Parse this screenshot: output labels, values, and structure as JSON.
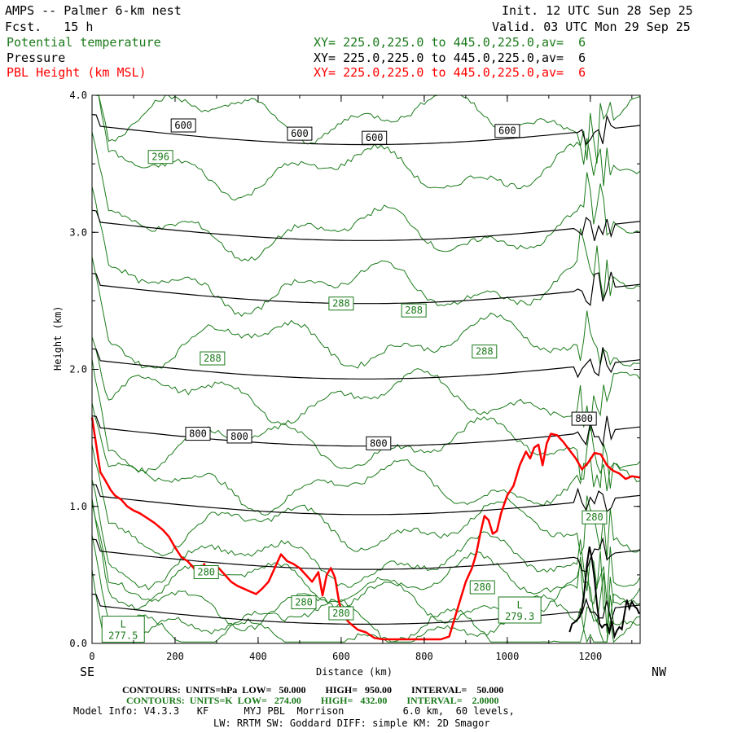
{
  "header": {
    "title": "AMPS -- Palmer 6-km nest",
    "init": "Init. 12 UTC Sun 28 Sep 25",
    "fcst": "Fcst.   15 h",
    "valid": "Valid. 03 UTC Mon 29 Sep 25",
    "fields": [
      {
        "name": "Potential temperature",
        "xy": "XY= 225.0,225.0 to 445.0,225.0,av=  6",
        "color": "#1a7a1a"
      },
      {
        "name": "Pressure",
        "xy": "XY= 225.0,225.0 to 445.0,225.0,av=  6",
        "color": "#000000"
      },
      {
        "name": "PBL Height (km MSL)",
        "xy": "XY= 225.0,225.0 to 445.0,225.0,av=  6",
        "color": "#ff0000"
      }
    ]
  },
  "footer": {
    "pressure_contours": "CONTOURS:  UNITS=hPa  LOW=   50.000        HIGH=   950.00        INTERVAL=    50.000",
    "theta_contours": "CONTOURS:  UNITS=K  LOW=   274.00        HIGH=   432.00        INTERVAL=    2.0000",
    "model_info": "Model Info: V4.3.3   KF      MYJ PBL  Morrison          6.0 km,  60 levels,",
    "model_info2": "LW: RRTM SW: Goddard DIFF: simple KM: 2D Smagor"
  },
  "chart_data": {
    "type": "line",
    "xlabel": "Distance (km)",
    "ylabel": "Height (km)",
    "xlim": [
      0,
      1320
    ],
    "ylim": [
      0,
      4
    ],
    "x_ticks": [
      "0",
      "200",
      "400",
      "600",
      "800",
      "1000",
      "1200"
    ],
    "y_ticks": [
      "0.0",
      "1.0",
      "2.0",
      "3.0",
      "4.0"
    ],
    "left_end": "SE",
    "right_end": "NW",
    "pressure_labels": [
      {
        "text": "600",
        "x": 220,
        "y": 3.78
      },
      {
        "text": "600",
        "x": 500,
        "y": 3.72
      },
      {
        "text": "600",
        "x": 680,
        "y": 3.69
      },
      {
        "text": "600",
        "x": 1000,
        "y": 3.74
      },
      {
        "text": "800",
        "x": 255,
        "y": 1.53
      },
      {
        "text": "800",
        "x": 355,
        "y": 1.51
      },
      {
        "text": "800",
        "x": 690,
        "y": 1.46
      },
      {
        "text": "800",
        "x": 1185,
        "y": 1.64
      }
    ],
    "theta_labels": [
      {
        "text": "296",
        "x": 165,
        "y": 3.55
      },
      {
        "text": "288",
        "x": 600,
        "y": 2.48
      },
      {
        "text": "288",
        "x": 775,
        "y": 2.43
      },
      {
        "text": "288",
        "x": 290,
        "y": 2.08
      },
      {
        "text": "288",
        "x": 945,
        "y": 2.13
      },
      {
        "text": "280",
        "x": 275,
        "y": 0.52
      },
      {
        "text": "280",
        "x": 510,
        "y": 0.3
      },
      {
        "text": "280",
        "x": 600,
        "y": 0.22
      },
      {
        "text": "280",
        "x": 940,
        "y": 0.41
      },
      {
        "text": "280",
        "x": 1210,
        "y": 0.92
      }
    ],
    "low_markers": [
      {
        "text": "L",
        "sub": "279.3",
        "x": 1030,
        "y": 0.22
      },
      {
        "text": "L",
        "sub": "277.5",
        "x": 75,
        "y": 0.08
      }
    ],
    "series": [
      {
        "name": "PBL Height (km MSL)",
        "color": "#ff0000",
        "x": [
          0,
          5,
          10,
          20,
          30,
          45,
          55,
          70,
          85,
          100,
          115,
          130,
          150,
          170,
          185,
          200,
          215,
          230,
          245,
          260,
          270,
          280,
          295,
          305,
          320,
          335,
          350,
          365,
          380,
          395,
          410,
          425,
          440,
          455,
          470,
          485,
          500,
          515,
          530,
          545,
          555,
          565,
          575,
          585,
          595,
          605,
          620,
          640,
          660,
          680,
          700,
          730,
          760,
          800,
          840,
          860,
          870,
          885,
          900,
          915,
          925,
          935,
          945,
          955,
          965,
          975,
          985,
          1000,
          1015,
          1030,
          1045,
          1055,
          1065,
          1075,
          1085,
          1095,
          1105,
          1120,
          1135,
          1150,
          1165,
          1180,
          1195,
          1210,
          1225,
          1240,
          1255,
          1270,
          1285,
          1300,
          1320
        ],
        "values": [
          1.65,
          1.55,
          1.45,
          1.25,
          1.2,
          1.12,
          1.08,
          1.05,
          1.0,
          0.97,
          0.95,
          0.92,
          0.88,
          0.83,
          0.78,
          0.7,
          0.63,
          0.6,
          0.55,
          0.5,
          0.58,
          0.48,
          0.55,
          0.55,
          0.5,
          0.45,
          0.42,
          0.4,
          0.38,
          0.36,
          0.4,
          0.45,
          0.55,
          0.65,
          0.6,
          0.58,
          0.55,
          0.5,
          0.45,
          0.52,
          0.35,
          0.5,
          0.55,
          0.48,
          0.3,
          0.2,
          0.15,
          0.1,
          0.08,
          0.04,
          0.03,
          0.03,
          0.03,
          0.03,
          0.03,
          0.05,
          0.15,
          0.3,
          0.45,
          0.55,
          0.65,
          0.8,
          0.93,
          0.9,
          0.8,
          0.82,
          0.95,
          1.08,
          1.15,
          1.3,
          1.4,
          1.35,
          1.43,
          1.45,
          1.3,
          1.46,
          1.53,
          1.52,
          1.47,
          1.41,
          1.35,
          1.27,
          1.32,
          1.39,
          1.38,
          1.3,
          1.26,
          1.24,
          1.2,
          1.22,
          1.21
        ]
      }
    ]
  }
}
